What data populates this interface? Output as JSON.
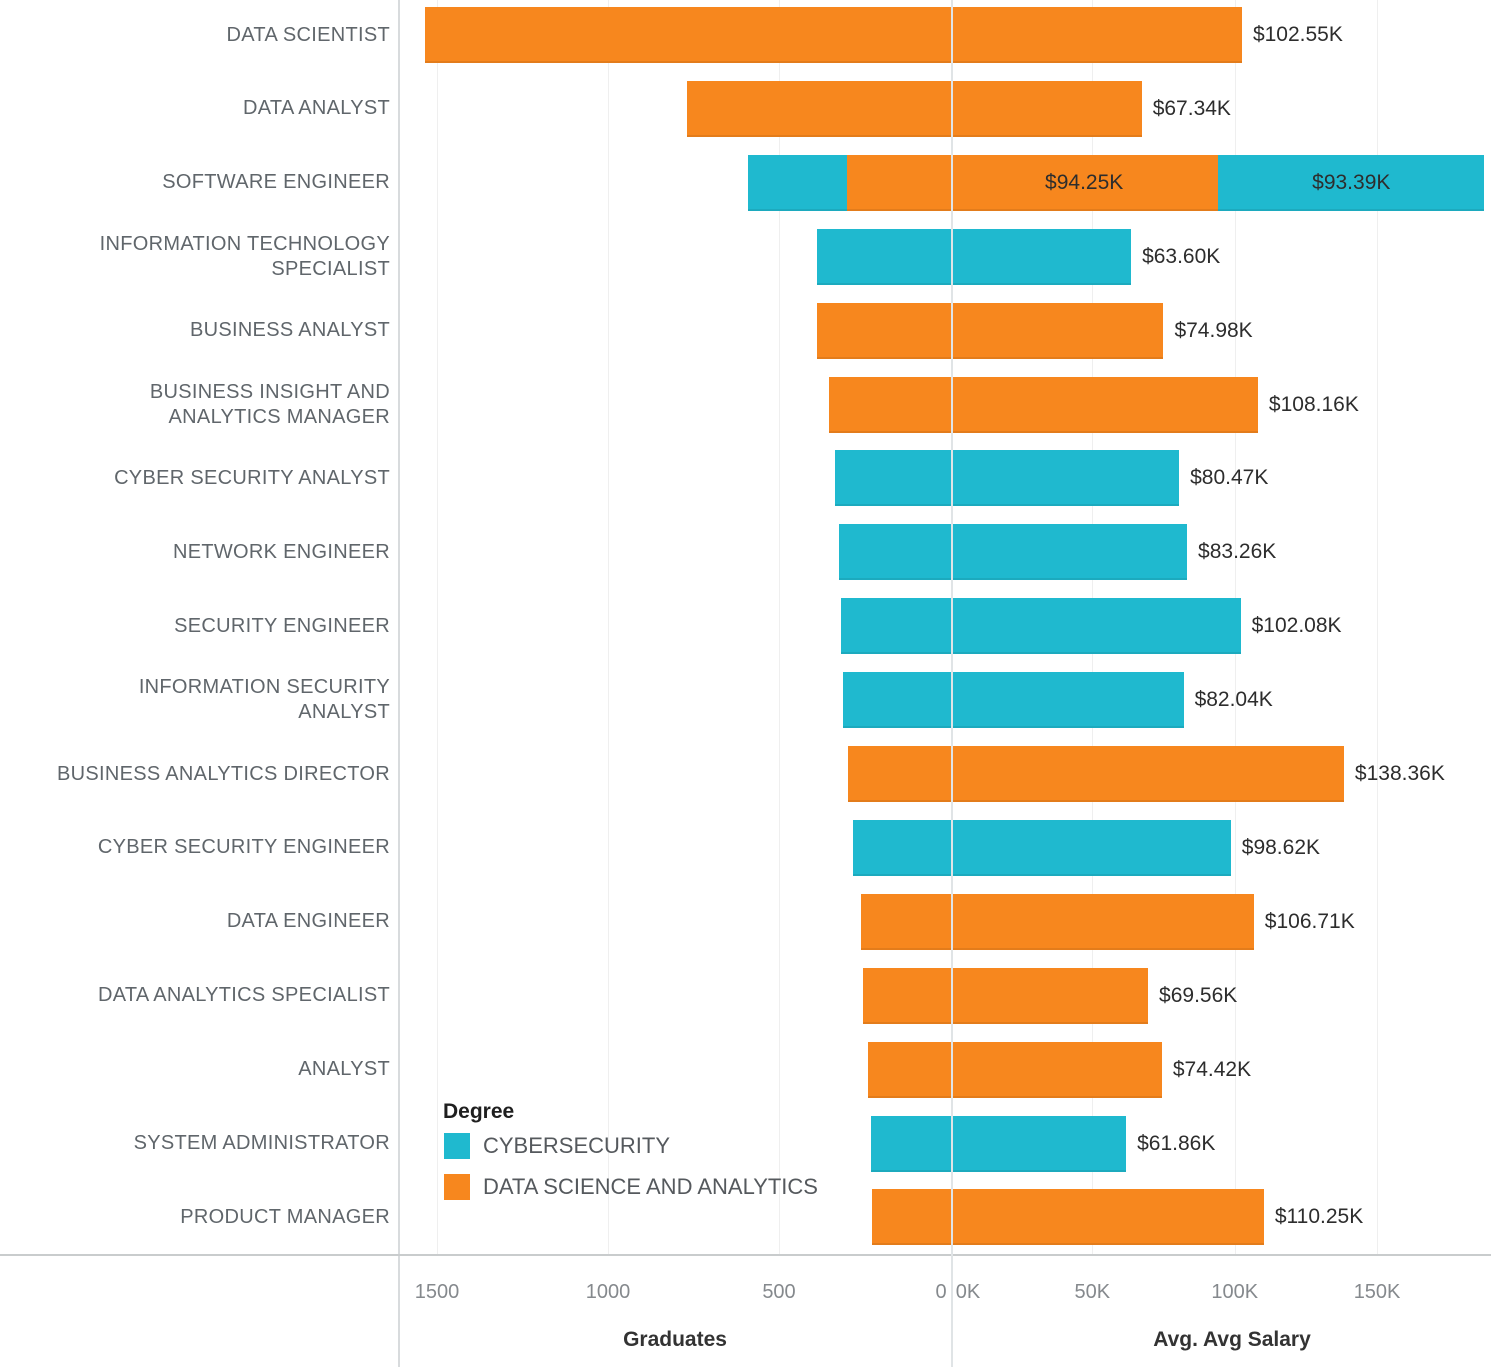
{
  "chart_data": {
    "type": "bar",
    "variant": "diverging-stacked-horizontal",
    "left_axis": {
      "title": "Graduates",
      "ticks": [
        {
          "value": 1500,
          "label": "1500"
        },
        {
          "value": 1000,
          "label": "1000"
        },
        {
          "value": 500,
          "label": "500"
        },
        {
          "value": 0,
          "label": "0"
        }
      ]
    },
    "right_axis": {
      "title": "Avg. Avg Salary",
      "ticks": [
        {
          "value": 0,
          "label": "0K"
        },
        {
          "value": 50,
          "label": "50K"
        },
        {
          "value": 100,
          "label": "100K"
        },
        {
          "value": 150,
          "label": "150K"
        }
      ]
    },
    "legend": {
      "title": "Degree",
      "entries": [
        {
          "id": "cyber",
          "label": "CYBERSECURITY",
          "color": "#1FB9CF"
        },
        {
          "id": "dsa",
          "label": "DATA SCIENCE AND ANALYTICS",
          "color": "#F7871E"
        }
      ]
    },
    "rows": [
      {
        "label_lines": [
          "DATA SCIENTIST"
        ],
        "graduates": [
          {
            "degree": "dsa",
            "value": 1535
          }
        ],
        "salary": [
          {
            "degree": "dsa",
            "value_k": 102.55,
            "label": "$102.55K",
            "label_inside": false
          }
        ]
      },
      {
        "label_lines": [
          "DATA ANALYST"
        ],
        "graduates": [
          {
            "degree": "dsa",
            "value": 770
          }
        ],
        "salary": [
          {
            "degree": "dsa",
            "value_k": 67.34,
            "label": "$67.34K",
            "label_inside": false
          }
        ]
      },
      {
        "label_lines": [
          "SOFTWARE ENGINEER"
        ],
        "graduates": [
          {
            "degree": "dsa",
            "value": 300
          },
          {
            "degree": "cyber",
            "value": 290
          }
        ],
        "salary": [
          {
            "degree": "dsa",
            "value_k": 94.25,
            "label": "$94.25K",
            "label_inside": true
          },
          {
            "degree": "cyber",
            "value_k": 93.39,
            "label": "$93.39K",
            "label_inside": true
          }
        ]
      },
      {
        "label_lines": [
          "INFORMATION TECHNOLOGY",
          "SPECIALIST"
        ],
        "graduates": [
          {
            "degree": "cyber",
            "value": 390
          }
        ],
        "salary": [
          {
            "degree": "cyber",
            "value_k": 63.6,
            "label": "$63.60K",
            "label_inside": false
          }
        ]
      },
      {
        "label_lines": [
          "BUSINESS ANALYST"
        ],
        "graduates": [
          {
            "degree": "dsa",
            "value": 390
          }
        ],
        "salary": [
          {
            "degree": "dsa",
            "value_k": 74.98,
            "label": "$74.98K",
            "label_inside": false
          }
        ]
      },
      {
        "label_lines": [
          "BUSINESS INSIGHT AND",
          "ANALYTICS MANAGER"
        ],
        "graduates": [
          {
            "degree": "dsa",
            "value": 355
          }
        ],
        "salary": [
          {
            "degree": "dsa",
            "value_k": 108.16,
            "label": "$108.16K",
            "label_inside": false
          }
        ]
      },
      {
        "label_lines": [
          "CYBER SECURITY ANALYST"
        ],
        "graduates": [
          {
            "degree": "cyber",
            "value": 335
          }
        ],
        "salary": [
          {
            "degree": "cyber",
            "value_k": 80.47,
            "label": "$80.47K",
            "label_inside": false
          }
        ]
      },
      {
        "label_lines": [
          "NETWORK ENGINEER"
        ],
        "graduates": [
          {
            "degree": "cyber",
            "value": 325
          }
        ],
        "salary": [
          {
            "degree": "cyber",
            "value_k": 83.26,
            "label": "$83.26K",
            "label_inside": false
          }
        ]
      },
      {
        "label_lines": [
          "SECURITY ENGINEER"
        ],
        "graduates": [
          {
            "degree": "cyber",
            "value": 320
          }
        ],
        "salary": [
          {
            "degree": "cyber",
            "value_k": 102.08,
            "label": "$102.08K",
            "label_inside": false
          }
        ]
      },
      {
        "label_lines": [
          "INFORMATION SECURITY",
          "ANALYST"
        ],
        "graduates": [
          {
            "degree": "cyber",
            "value": 313
          }
        ],
        "salary": [
          {
            "degree": "cyber",
            "value_k": 82.04,
            "label": "$82.04K",
            "label_inside": false
          }
        ]
      },
      {
        "label_lines": [
          "BUSINESS ANALYTICS DIRECTOR"
        ],
        "graduates": [
          {
            "degree": "dsa",
            "value": 298
          }
        ],
        "salary": [
          {
            "degree": "dsa",
            "value_k": 138.36,
            "label": "$138.36K",
            "label_inside": false
          }
        ]
      },
      {
        "label_lines": [
          "CYBER SECURITY ENGINEER"
        ],
        "graduates": [
          {
            "degree": "cyber",
            "value": 284
          }
        ],
        "salary": [
          {
            "degree": "cyber",
            "value_k": 98.62,
            "label": "$98.62K",
            "label_inside": false
          }
        ]
      },
      {
        "label_lines": [
          "DATA ENGINEER"
        ],
        "graduates": [
          {
            "degree": "dsa",
            "value": 260
          }
        ],
        "salary": [
          {
            "degree": "dsa",
            "value_k": 106.71,
            "label": "$106.71K",
            "label_inside": false
          }
        ]
      },
      {
        "label_lines": [
          "DATA ANALYTICS SPECIALIST"
        ],
        "graduates": [
          {
            "degree": "dsa",
            "value": 254
          }
        ],
        "salary": [
          {
            "degree": "dsa",
            "value_k": 69.56,
            "label": "$69.56K",
            "label_inside": false
          }
        ]
      },
      {
        "label_lines": [
          "ANALYST"
        ],
        "graduates": [
          {
            "degree": "dsa",
            "value": 240
          }
        ],
        "salary": [
          {
            "degree": "dsa",
            "value_k": 74.42,
            "label": "$74.42K",
            "label_inside": false
          }
        ]
      },
      {
        "label_lines": [
          "SYSTEM ADMINISTRATOR"
        ],
        "graduates": [
          {
            "degree": "cyber",
            "value": 231
          }
        ],
        "salary": [
          {
            "degree": "cyber",
            "value_k": 61.86,
            "label": "$61.86K",
            "label_inside": false
          }
        ]
      },
      {
        "label_lines": [
          "PRODUCT MANAGER"
        ],
        "graduates": [
          {
            "degree": "dsa",
            "value": 228
          }
        ],
        "salary": [
          {
            "degree": "dsa",
            "value_k": 110.25,
            "label": "$110.25K",
            "label_inside": false
          }
        ]
      }
    ]
  }
}
